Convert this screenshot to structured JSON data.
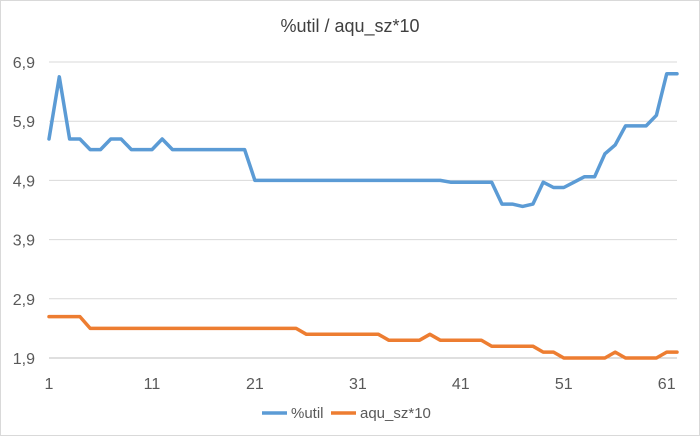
{
  "chart_data": {
    "type": "line",
    "title": "%util / aqu_sz*10",
    "xlabel": "",
    "ylabel": "",
    "x": [
      1,
      2,
      3,
      4,
      5,
      6,
      7,
      8,
      9,
      10,
      11,
      12,
      13,
      14,
      15,
      16,
      17,
      18,
      19,
      20,
      21,
      22,
      23,
      24,
      25,
      26,
      27,
      28,
      29,
      30,
      31,
      32,
      33,
      34,
      35,
      36,
      37,
      38,
      39,
      40,
      41,
      42,
      43,
      44,
      45,
      46,
      47,
      48,
      49,
      50,
      51,
      52,
      53,
      54,
      55,
      56,
      57,
      58,
      59,
      60,
      61,
      62
    ],
    "x_ticks": [
      1,
      11,
      21,
      31,
      41,
      51,
      61
    ],
    "x_tick_labels": [
      "1",
      "11",
      "21",
      "31",
      "41",
      "51",
      "61"
    ],
    "xlim": [
      1,
      62
    ],
    "y_ticks": [
      1.9,
      2.9,
      3.9,
      4.9,
      5.9,
      6.9
    ],
    "y_tick_labels": [
      "1,9",
      "2,9",
      "3,9",
      "4,9",
      "5,9",
      "6,9"
    ],
    "ylim": [
      1.9,
      6.9
    ],
    "grid": true,
    "legend_position": "bottom",
    "series": [
      {
        "name": "%util",
        "color": "#5b9bd5",
        "values": [
          5.6,
          6.65,
          5.6,
          5.6,
          5.42,
          5.42,
          5.6,
          5.6,
          5.42,
          5.42,
          5.42,
          5.6,
          5.42,
          5.42,
          5.42,
          5.42,
          5.42,
          5.42,
          5.42,
          5.42,
          4.9,
          4.9,
          4.9,
          4.9,
          4.9,
          4.9,
          4.9,
          4.9,
          4.9,
          4.9,
          4.9,
          4.9,
          4.9,
          4.9,
          4.9,
          4.9,
          4.9,
          4.9,
          4.9,
          4.87,
          4.87,
          4.87,
          4.87,
          4.87,
          4.5,
          4.5,
          4.46,
          4.5,
          4.87,
          4.78,
          4.78,
          4.87,
          4.96,
          4.96,
          5.35,
          5.5,
          5.82,
          5.82,
          5.82,
          6.0,
          6.7,
          6.7
        ]
      },
      {
        "name": "aqu_sz*10",
        "color": "#ed7d31",
        "values": [
          2.6,
          2.6,
          2.6,
          2.6,
          2.4,
          2.4,
          2.4,
          2.4,
          2.4,
          2.4,
          2.4,
          2.4,
          2.4,
          2.4,
          2.4,
          2.4,
          2.4,
          2.4,
          2.4,
          2.4,
          2.4,
          2.4,
          2.4,
          2.4,
          2.4,
          2.3,
          2.3,
          2.3,
          2.3,
          2.3,
          2.3,
          2.3,
          2.3,
          2.2,
          2.2,
          2.2,
          2.2,
          2.3,
          2.2,
          2.2,
          2.2,
          2.2,
          2.2,
          2.1,
          2.1,
          2.1,
          2.1,
          2.1,
          2.0,
          2.0,
          1.9,
          1.9,
          1.9,
          1.9,
          1.9,
          2.0,
          1.9,
          1.9,
          1.9,
          1.9,
          2.0,
          2.0
        ]
      }
    ]
  }
}
